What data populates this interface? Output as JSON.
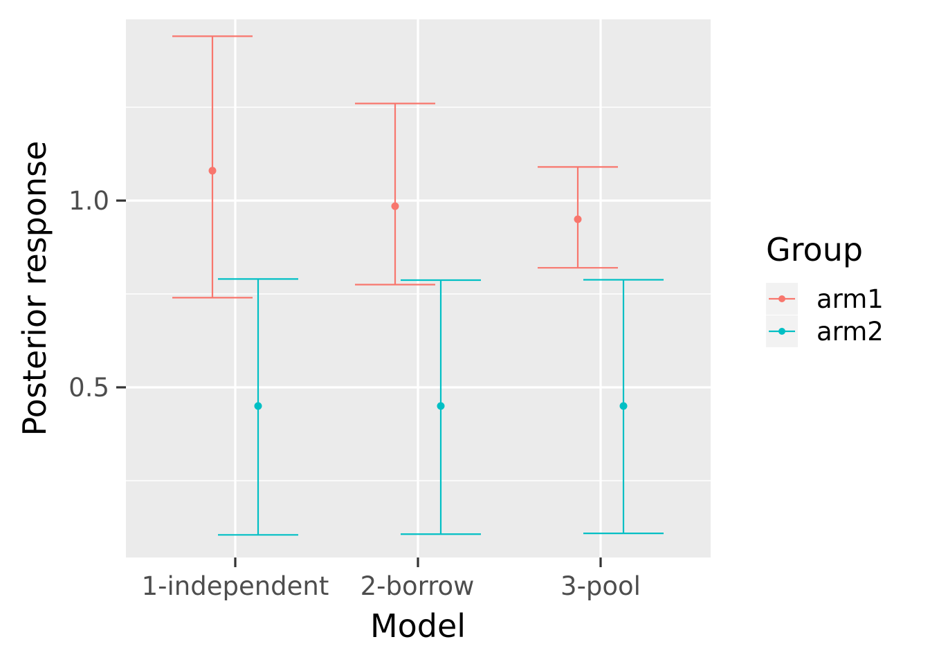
{
  "chart_data": {
    "type": "errorbar",
    "title": "",
    "xlabel": "Model",
    "ylabel": "Posterior response",
    "categories": [
      "1-independent",
      "2-borrow",
      "3-pool"
    ],
    "ylim": [
      0.06,
      1.51
    ],
    "yticks": [
      0.5,
      1.0
    ],
    "ytick_labels": [
      "0.5",
      "1.0"
    ],
    "grid": true,
    "legend": {
      "title": "Group",
      "position": "right"
    },
    "series": [
      {
        "name": "arm1",
        "color": "#F8766D",
        "values": [
          1.08,
          0.985,
          0.95
        ],
        "lower": [
          0.74,
          0.775,
          0.82
        ],
        "upper": [
          1.44,
          1.26,
          1.09
        ]
      },
      {
        "name": "arm2",
        "color": "#00BFC4",
        "values": [
          0.45,
          0.45,
          0.45
        ],
        "lower": [
          0.105,
          0.107,
          0.109
        ],
        "upper": [
          0.79,
          0.787,
          0.788
        ]
      }
    ]
  }
}
